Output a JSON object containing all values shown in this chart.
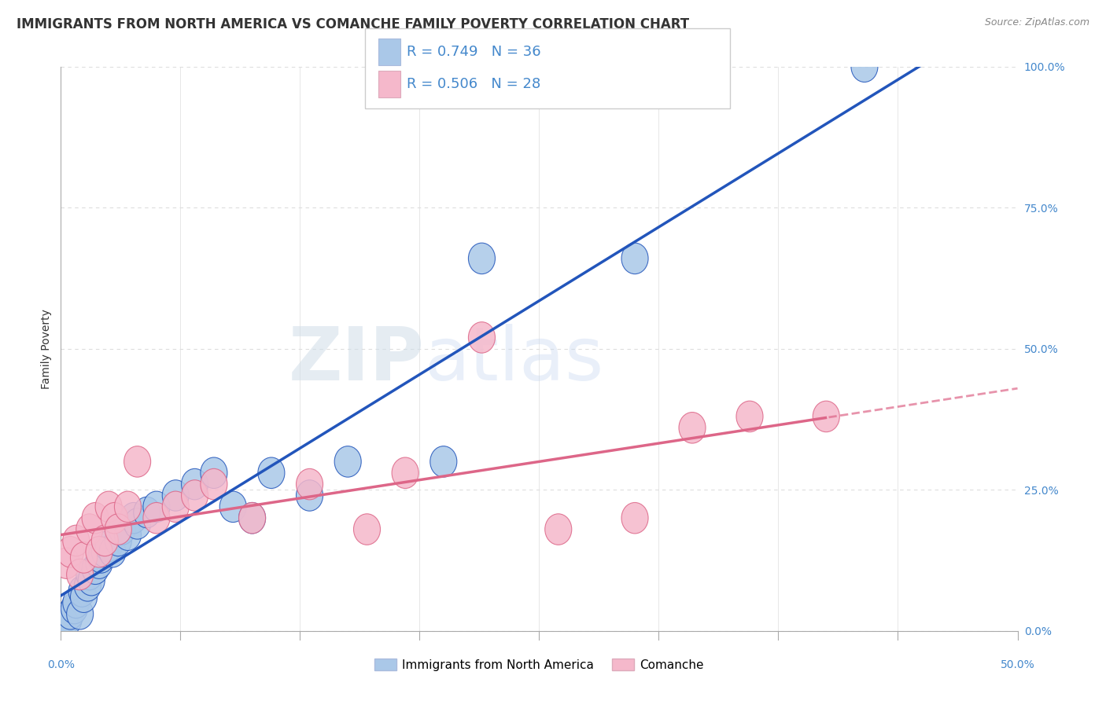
{
  "title": "IMMIGRANTS FROM NORTH AMERICA VS COMANCHE FAMILY POVERTY CORRELATION CHART",
  "source": "Source: ZipAtlas.com",
  "ylabel": "Family Poverty",
  "legend_label1": "Immigrants from North America",
  "legend_label2": "Comanche",
  "r1": "0.749",
  "n1": "36",
  "r2": "0.506",
  "n2": "28",
  "color_blue": "#aac8e8",
  "color_pink": "#f5b8cb",
  "line_color_blue": "#2255bb",
  "line_color_pink": "#dd6688",
  "blue_scatter_x": [
    0.2,
    0.4,
    0.5,
    0.7,
    0.8,
    1.0,
    1.1,
    1.2,
    1.4,
    1.5,
    1.6,
    1.8,
    2.0,
    2.1,
    2.3,
    2.5,
    2.7,
    3.0,
    3.2,
    3.5,
    3.8,
    4.0,
    4.5,
    5.0,
    6.0,
    7.0,
    8.0,
    9.0,
    10.0,
    11.0,
    13.0,
    15.0,
    20.0,
    22.0,
    30.0,
    42.0
  ],
  "blue_scatter_y": [
    1.5,
    2.0,
    3.0,
    4.0,
    5.0,
    3.0,
    7.0,
    6.0,
    8.0,
    10.0,
    9.0,
    11.0,
    12.0,
    13.0,
    14.0,
    15.0,
    14.0,
    16.0,
    18.0,
    17.0,
    20.0,
    19.0,
    21.0,
    22.0,
    24.0,
    26.0,
    28.0,
    22.0,
    20.0,
    28.0,
    24.0,
    30.0,
    30.0,
    66.0,
    66.0,
    100.0
  ],
  "pink_scatter_x": [
    0.3,
    0.5,
    0.8,
    1.0,
    1.2,
    1.5,
    1.8,
    2.0,
    2.3,
    2.5,
    2.8,
    3.0,
    3.5,
    4.0,
    5.0,
    6.0,
    7.0,
    8.0,
    10.0,
    13.0,
    16.0,
    18.0,
    22.0,
    26.0,
    30.0,
    33.0,
    36.0,
    40.0
  ],
  "pink_scatter_y": [
    12.0,
    14.0,
    16.0,
    10.0,
    13.0,
    18.0,
    20.0,
    14.0,
    16.0,
    22.0,
    20.0,
    18.0,
    22.0,
    30.0,
    20.0,
    22.0,
    24.0,
    26.0,
    20.0,
    26.0,
    18.0,
    28.0,
    52.0,
    18.0,
    20.0,
    36.0,
    38.0,
    38.0
  ],
  "xmin": 0,
  "xmax": 50,
  "ymin": 0,
  "ymax": 100,
  "ytick_values": [
    0,
    25,
    50,
    75,
    100
  ],
  "title_fontsize": 12,
  "source_fontsize": 9,
  "tick_fontsize": 10,
  "ylabel_fontsize": 10,
  "legend_fontsize": 13,
  "tick_color": "#4488cc",
  "text_color": "#333333",
  "grid_color": "#dddddd",
  "background_color": "#ffffff"
}
